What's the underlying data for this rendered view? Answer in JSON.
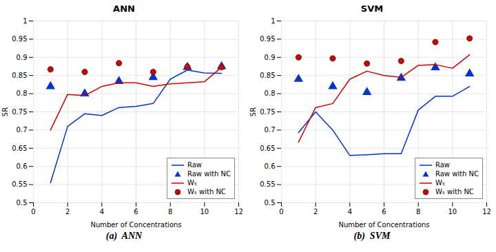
{
  "chart_data": [
    {
      "type": "line",
      "title": "ANN",
      "subtitle": "(a)  ANN",
      "xlabel": "Number of Concentrations",
      "ylabel": "SR",
      "xlim": [
        0,
        12
      ],
      "xticks": [
        0,
        2,
        4,
        6,
        8,
        10,
        12
      ],
      "ylim": [
        0.5,
        1.0
      ],
      "yticks": [
        0.5,
        0.55,
        0.6,
        0.65,
        0.7,
        0.75,
        0.8,
        0.85,
        0.9,
        0.95,
        1
      ],
      "grid": true,
      "legend": "lower right",
      "series": [
        {
          "name": "Raw",
          "type": "line",
          "color": "#0033CC",
          "x": [
            1,
            2,
            3,
            4,
            5,
            6,
            7,
            8,
            9,
            10,
            11
          ],
          "values": [
            0.555,
            0.71,
            0.745,
            0.74,
            0.762,
            0.765,
            0.773,
            0.84,
            0.865,
            0.857,
            0.856
          ]
        },
        {
          "name": "Raw with NC",
          "type": "scatter",
          "marker": "triangle",
          "color": "#0033CC",
          "x": [
            1,
            3,
            5,
            7,
            9,
            11
          ],
          "values": [
            0.82,
            0.8,
            0.834,
            0.845,
            0.873,
            0.875
          ]
        },
        {
          "name": "W₅",
          "type": "line",
          "color": "#CC0000",
          "x": [
            1,
            2,
            3,
            4,
            5,
            6,
            7,
            8,
            9,
            10,
            11
          ],
          "values": [
            0.7,
            0.798,
            0.795,
            0.82,
            0.83,
            0.83,
            0.82,
            0.827,
            0.83,
            0.833,
            0.873
          ]
        },
        {
          "name": "W₅ with NC",
          "type": "scatter",
          "marker": "circle",
          "color": "#CC0000",
          "x": [
            1,
            3,
            5,
            7,
            9,
            11
          ],
          "values": [
            0.867,
            0.86,
            0.884,
            0.86,
            0.874,
            0.873
          ]
        }
      ]
    },
    {
      "type": "line",
      "title": "SVM",
      "subtitle": "(b)  SVM",
      "xlabel": "Number of Concentrations",
      "ylabel": "SR",
      "xlim": [
        0,
        12
      ],
      "xticks": [
        0,
        2,
        4,
        6,
        8,
        10,
        12
      ],
      "ylim": [
        0.5,
        1.0
      ],
      "yticks": [
        0.5,
        0.55,
        0.6,
        0.65,
        0.7,
        0.75,
        0.8,
        0.85,
        0.9,
        0.95,
        1
      ],
      "grid": true,
      "legend": "lower right",
      "series": [
        {
          "name": "Raw",
          "type": "line",
          "color": "#0033CC",
          "x": [
            1,
            2,
            3,
            4,
            5,
            6,
            7,
            8,
            9,
            10,
            11
          ],
          "values": [
            0.693,
            0.75,
            0.7,
            0.63,
            0.632,
            0.635,
            0.635,
            0.755,
            0.793,
            0.793,
            0.82
          ]
        },
        {
          "name": "Raw with NC",
          "type": "scatter",
          "marker": "triangle",
          "color": "#0033CC",
          "x": [
            1,
            3,
            5,
            7,
            9,
            11
          ],
          "values": [
            0.84,
            0.82,
            0.804,
            0.843,
            0.872,
            0.855
          ]
        },
        {
          "name": "W₅",
          "type": "line",
          "color": "#CC0000",
          "x": [
            1,
            2,
            3,
            4,
            5,
            6,
            7,
            8,
            9,
            10,
            11
          ],
          "values": [
            0.667,
            0.762,
            0.773,
            0.84,
            0.862,
            0.85,
            0.845,
            0.878,
            0.88,
            0.87,
            0.907
          ]
        },
        {
          "name": "W₅ with NC",
          "type": "scatter",
          "marker": "circle",
          "color": "#CC0000",
          "x": [
            1,
            3,
            5,
            7,
            9,
            11
          ],
          "values": [
            0.9,
            0.897,
            0.883,
            0.89,
            0.942,
            0.952
          ]
        }
      ]
    }
  ]
}
